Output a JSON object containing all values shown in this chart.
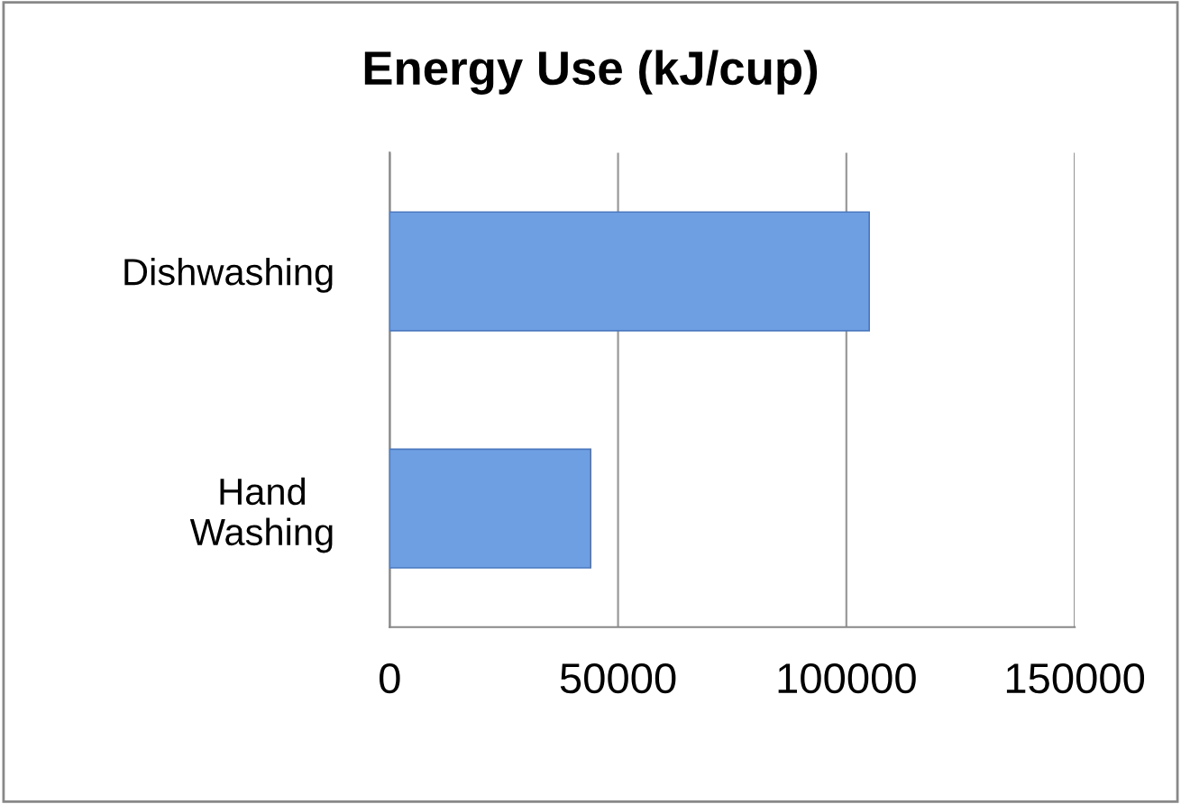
{
  "chart_data": {
    "type": "bar",
    "orientation": "horizontal",
    "title": "Energy Use (kJ/cup)",
    "categories": [
      "Dishwashing",
      "Hand\nWashing"
    ],
    "values": [
      105000,
      44000
    ],
    "color": "#6f9fe3",
    "xlim": [
      0,
      150000
    ],
    "xticks": [
      0,
      50000,
      100000,
      150000
    ],
    "grid": "x",
    "legend": false
  }
}
